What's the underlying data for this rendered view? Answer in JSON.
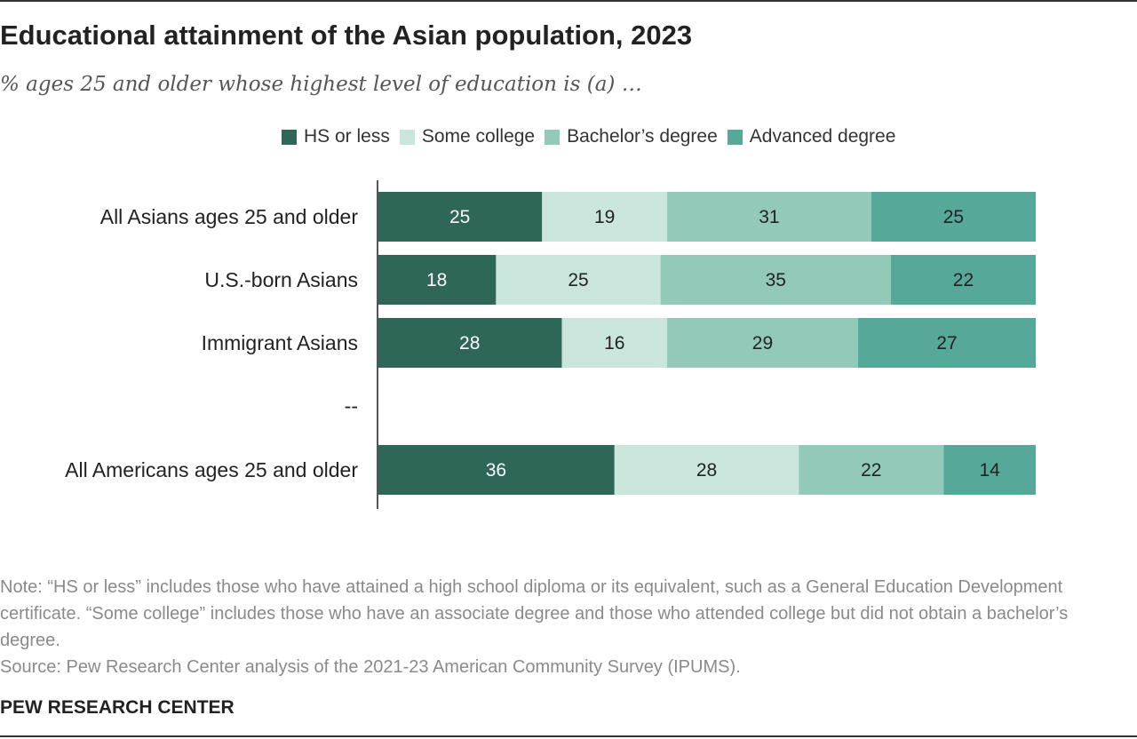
{
  "title": "Educational attainment of the Asian population, 2023",
  "subtitle": "% ages 25 and older whose highest level of education is (a) …",
  "note": "Note: “HS or less” includes those who have attained a high school diploma or its equivalent, such as a General Education Development certificate. “Some college” includes those who have an associate degree and those who attended college but did not obtain a bachelor’s degree.",
  "source": "Source: Pew Research Center analysis of the 2021-23 American Community Survey (IPUMS).",
  "org": "PEW RESEARCH CENTER",
  "colors": {
    "hs_or_less": "#2e6657",
    "some_college": "#c9e5dc",
    "bachelors": "#93c9b8",
    "advanced": "#56a999"
  },
  "chart_data": {
    "type": "bar",
    "orientation": "horizontal",
    "stacked": true,
    "categories": [
      "All Asians ages 25 and older",
      "U.S.-born Asians",
      "Immigrant Asians",
      "--",
      "All Americans ages 25 and older"
    ],
    "series": [
      {
        "name": "HS or less",
        "color": "#2e6657",
        "values": [
          25,
          18,
          28,
          null,
          36
        ]
      },
      {
        "name": "Some college",
        "color": "#c9e5dc",
        "values": [
          19,
          25,
          16,
          null,
          28
        ]
      },
      {
        "name": "Bachelor’s degree",
        "color": "#93c9b8",
        "values": [
          31,
          35,
          29,
          null,
          22
        ]
      },
      {
        "name": "Advanced degree",
        "color": "#56a999",
        "values": [
          25,
          22,
          27,
          null,
          14
        ]
      }
    ],
    "legend_position": "top",
    "grid": false
  }
}
